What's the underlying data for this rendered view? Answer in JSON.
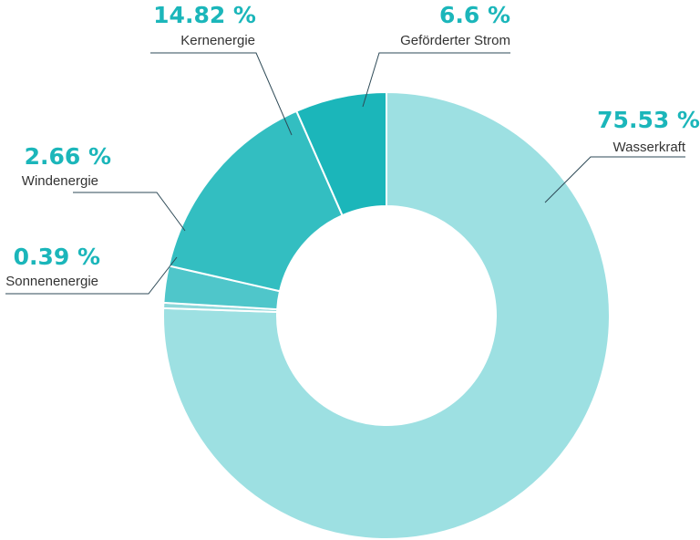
{
  "chart_data": {
    "type": "pie",
    "variant": "donut",
    "title": "",
    "legend": "none",
    "colors": {
      "label_value": "#1BB6BA",
      "label_text": "#333333",
      "leader_line": "#2E4A57",
      "separator": "#ffffff"
    },
    "slices": [
      {
        "name": "Wasserkraft",
        "value": 75.53,
        "value_label": "75.53 %",
        "color": "#9DE0E2"
      },
      {
        "name": "Sonnenenergie",
        "value": 0.39,
        "value_label": "0.39 %",
        "color": "#8ED8DA"
      },
      {
        "name": "Windenergie",
        "value": 2.66,
        "value_label": "2.66 %",
        "color": "#4FC6CA"
      },
      {
        "name": "Kernenergie",
        "value": 14.82,
        "value_label": "14.82 %",
        "color": "#33BEC1"
      },
      {
        "name": "Geförderter Strom",
        "value": 6.6,
        "value_label": "6.6 %",
        "color": "#1BB6BA"
      }
    ]
  }
}
